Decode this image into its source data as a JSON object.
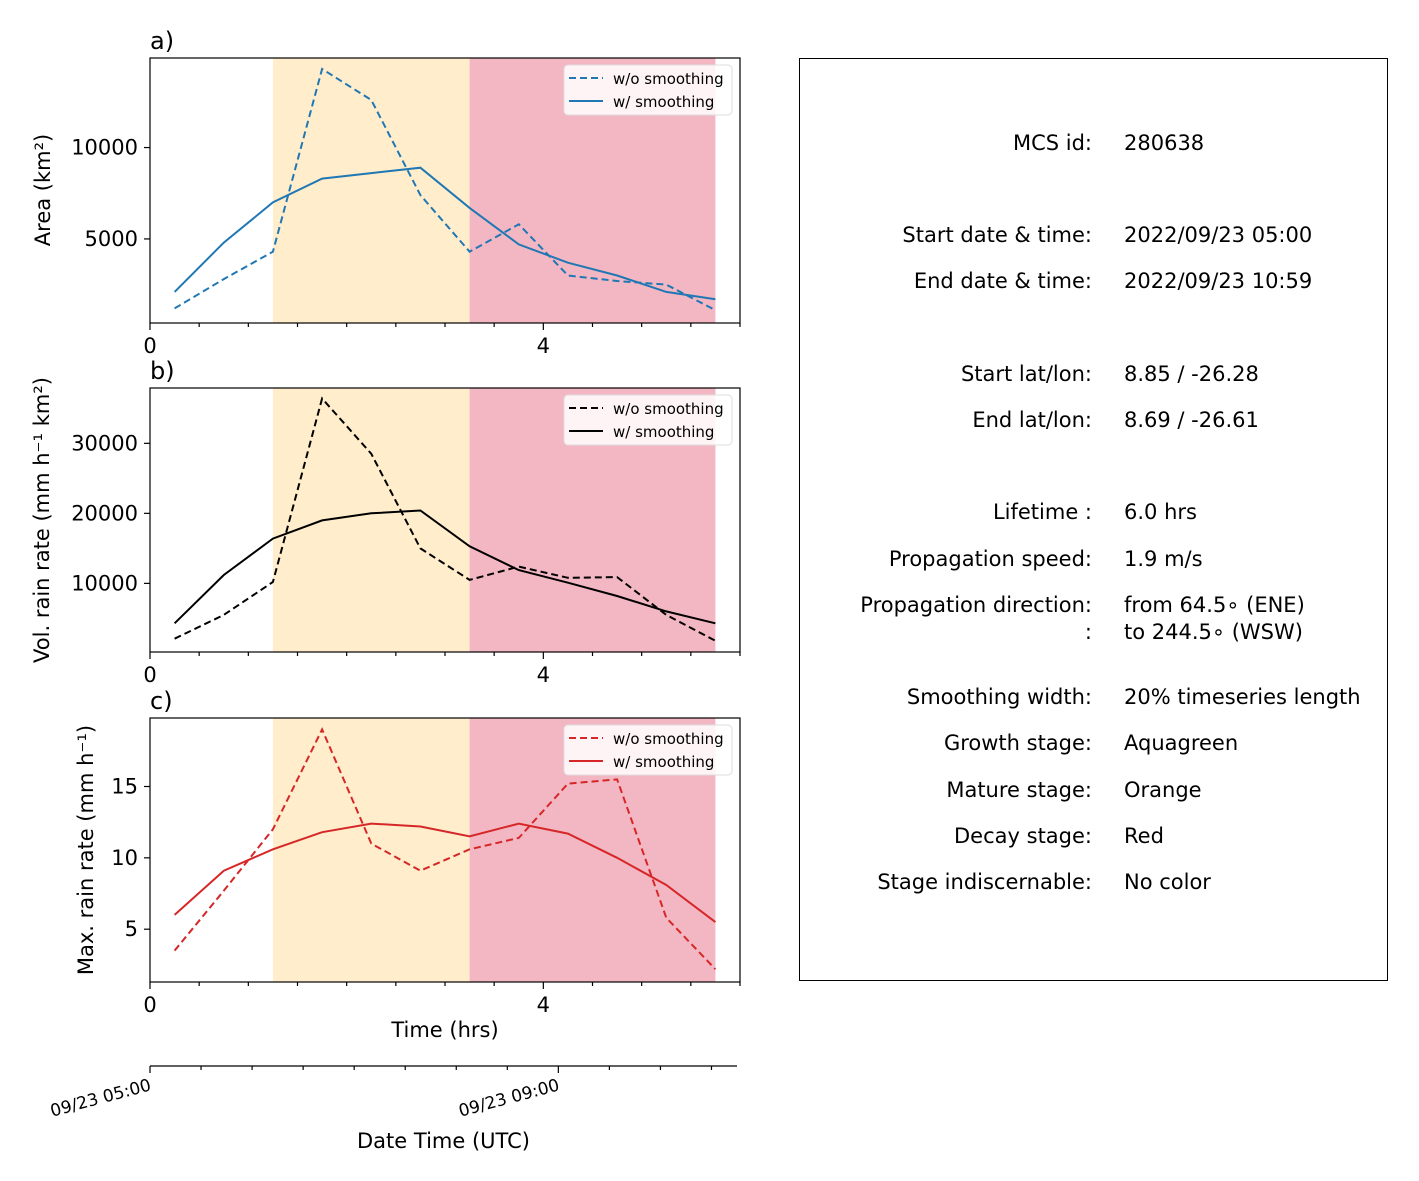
{
  "colors": {
    "growth": "#ffffff",
    "mature": "#ffedcb",
    "decay": "#f3b7c3",
    "area": "#1f77b4",
    "vol": "#000000",
    "max": "#d62728"
  },
  "legend": {
    "raw": "w/o smoothing",
    "smooth": "w/ smoothing"
  },
  "x_ticks": [
    "0",
    "4"
  ],
  "x_label": "Time (hrs)",
  "datetime_axis": {
    "ticks": [
      "09/23 05:00",
      "09/23 09:00"
    ],
    "label": "Date Time (UTC)"
  },
  "chart_data": [
    {
      "panel": "a)",
      "type": "line",
      "ylabel": "Area  (km²)",
      "ylim": [
        400,
        14900
      ],
      "xlim": [
        0,
        6
      ],
      "yticks": [
        5000,
        10000
      ],
      "ytick_labels": [
        "5000",
        "10000"
      ],
      "stages": [
        {
          "name": "mature",
          "x0": 1.25,
          "x1": 3.25
        },
        {
          "name": "decay",
          "x0": 3.25,
          "x1": 5.75
        }
      ],
      "x": [
        0.25,
        0.75,
        1.25,
        1.75,
        2.25,
        2.75,
        3.25,
        3.75,
        4.25,
        4.75,
        5.25,
        5.75
      ],
      "series": [
        {
          "name": "w/o smoothing",
          "style": "dashed",
          "values": [
            1200,
            2800,
            4300,
            14300,
            12600,
            7400,
            4300,
            5800,
            3000,
            2700,
            2500,
            1100
          ]
        },
        {
          "name": "w/ smoothing",
          "style": "solid",
          "values": [
            2100,
            4800,
            7000,
            8300,
            8600,
            8900,
            6700,
            4700,
            3700,
            3000,
            2100,
            1700
          ]
        }
      ]
    },
    {
      "panel": "b)",
      "type": "line",
      "ylabel": "Vol. rain rate (mm h⁻¹ km²)",
      "ylim": [
        200,
        37900
      ],
      "xlim": [
        0,
        6
      ],
      "yticks": [
        10000,
        20000,
        30000
      ],
      "ytick_labels": [
        "10000",
        "20000",
        "30000"
      ],
      "stages": [
        {
          "name": "mature",
          "x0": 1.25,
          "x1": 3.25
        },
        {
          "name": "decay",
          "x0": 3.25,
          "x1": 5.75
        }
      ],
      "x": [
        0.25,
        0.75,
        1.25,
        1.75,
        2.25,
        2.75,
        3.25,
        3.75,
        4.25,
        4.75,
        5.25,
        5.75
      ],
      "series": [
        {
          "name": "w/o smoothing",
          "style": "dashed",
          "values": [
            2100,
            5500,
            10200,
            36400,
            28500,
            15000,
            10500,
            12400,
            10800,
            10900,
            5500,
            1800
          ]
        },
        {
          "name": "w/ smoothing",
          "style": "solid",
          "values": [
            4300,
            11200,
            16400,
            19000,
            20000,
            20400,
            15300,
            11900,
            10100,
            8200,
            6000,
            4300
          ]
        }
      ]
    },
    {
      "panel": "c)",
      "type": "line",
      "ylabel": "Max. rain rate  (mm h⁻¹)",
      "ylim": [
        1.3,
        19.8
      ],
      "xlim": [
        0,
        6
      ],
      "yticks": [
        5,
        10,
        15
      ],
      "ytick_labels": [
        "5",
        "10",
        "15"
      ],
      "stages": [
        {
          "name": "mature",
          "x0": 1.25,
          "x1": 3.25
        },
        {
          "name": "decay",
          "x0": 3.25,
          "x1": 5.75
        }
      ],
      "x": [
        0.25,
        0.75,
        1.25,
        1.75,
        2.25,
        2.75,
        3.25,
        3.75,
        4.25,
        4.75,
        5.25,
        5.75
      ],
      "series": [
        {
          "name": "w/o smoothing",
          "style": "dashed",
          "values": [
            3.5,
            7.7,
            12.0,
            19.0,
            11.0,
            9.1,
            10.6,
            11.4,
            15.2,
            15.5,
            5.8,
            2.2
          ]
        },
        {
          "name": "w/ smoothing",
          "style": "solid",
          "values": [
            6.0,
            9.1,
            10.6,
            11.8,
            12.4,
            12.2,
            11.5,
            12.4,
            11.7,
            10.0,
            8.1,
            5.5
          ]
        }
      ]
    }
  ],
  "info": {
    "mcs_id": {
      "label": "MCS id:",
      "value": "280638"
    },
    "start_time": {
      "label": "Start date & time:",
      "value": "2022/09/23 05:00"
    },
    "end_time": {
      "label": "End date & time:",
      "value": "2022/09/23 10:59"
    },
    "start_latlon": {
      "label": "Start lat/lon:",
      "value": "8.85 / -26.28"
    },
    "end_latlon": {
      "label": "End lat/lon:",
      "value": "8.69 / -26.61"
    },
    "lifetime": {
      "label": "Lifetime :",
      "value": "6.0 hrs"
    },
    "speed": {
      "label": "Propagation speed:",
      "value": "1.9 m/s"
    },
    "direction": {
      "label": "Propagation direction:",
      "value": "from  64.5∘ (ENE)"
    },
    "direction2": {
      "label": ":",
      "value": "to   244.5∘ (WSW)"
    },
    "smoothing": {
      "label": "Smoothing width:",
      "value": "20% timeseries length"
    },
    "growth": {
      "label": "Growth stage:",
      "value": "Aquagreen"
    },
    "mature": {
      "label": "Mature stage:",
      "value": "Orange"
    },
    "decay": {
      "label": "Decay stage:",
      "value": "Red"
    },
    "indisc": {
      "label": "Stage indiscernable:",
      "value": "No color"
    }
  }
}
